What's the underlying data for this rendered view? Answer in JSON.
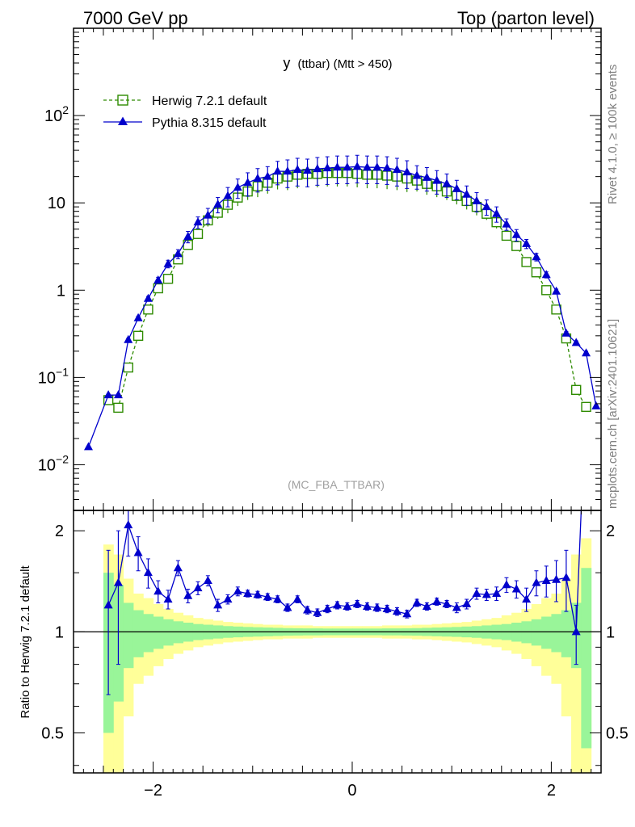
{
  "header": {
    "left": "7000 GeV pp",
    "right": "Top (parton level)"
  },
  "side_labels": {
    "rivet": "Rivet 4.1.0, ≥ 100k events",
    "mcplots": "mcplots.cern.ch [arXiv:2401.10621]"
  },
  "colors": {
    "herwig": "#2e8b00",
    "pythia": "#0000cc",
    "band_yellow": "#ffff99",
    "band_green": "#99f599"
  },
  "chart_data": [
    {
      "type": "line",
      "name": "main",
      "title": "y (ttbar) (Mtt > 450)",
      "title_main": "y",
      "title_sub": "(ttbar) (Mtt > 450)",
      "watermark": "(MC_FBA_TTBAR)",
      "xlabel": "",
      "ylabel": "",
      "yscale": "log",
      "xlim": [
        -2.8,
        2.5
      ],
      "ylim": [
        0.003,
        1000
      ],
      "y_tick_labels": [
        "10^-2",
        "10^-1",
        "1",
        "10",
        "10^2"
      ],
      "legend": [
        {
          "label": "Herwig 7.2.1 default",
          "marker": "open-square",
          "style": "dashed"
        },
        {
          "label": "Pythia 8.315 default",
          "marker": "filled-triangle",
          "style": "solid"
        }
      ],
      "series": [
        {
          "name": "Herwig 7.2.1 default",
          "x": [
            -2.45,
            -2.35,
            -2.25,
            -2.15,
            -2.05,
            -1.95,
            -1.85,
            -1.75,
            -1.65,
            -1.55,
            -1.45,
            -1.35,
            -1.25,
            -1.15,
            -1.05,
            -0.95,
            -0.85,
            -0.75,
            -0.65,
            -0.55,
            -0.45,
            -0.35,
            -0.25,
            -0.15,
            -0.05,
            0.05,
            0.15,
            0.25,
            0.35,
            0.45,
            0.55,
            0.65,
            0.75,
            0.85,
            0.95,
            1.05,
            1.15,
            1.25,
            1.35,
            1.45,
            1.55,
            1.65,
            1.75,
            1.85,
            1.95,
            2.05,
            2.15,
            2.25,
            2.35
          ],
          "y": [
            0.055,
            0.045,
            0.13,
            0.3,
            0.6,
            1.05,
            1.35,
            2.25,
            3.3,
            4.4,
            6.3,
            7.7,
            9.5,
            11.5,
            13.5,
            15.5,
            17,
            19,
            20,
            21,
            21.5,
            21.5,
            22,
            22,
            22,
            21.5,
            21,
            21,
            20.5,
            20,
            19,
            18,
            16.5,
            15.5,
            13.5,
            12,
            10.5,
            9,
            7.5,
            6,
            4.2,
            3.2,
            2.1,
            1.6,
            1,
            0.6,
            0.28,
            0.072,
            0.046
          ],
          "err": [
            0.02,
            0.02,
            0.02,
            0.04,
            0.05,
            0.05,
            0.06,
            0.08,
            0.1,
            0.12,
            0.15,
            0.15,
            0.2,
            0.2,
            0.2,
            0.25,
            0.25,
            0.25,
            0.3,
            0.3,
            0.3,
            0.3,
            0.3,
            0.3,
            0.3,
            0.3,
            0.3,
            0.3,
            0.3,
            0.3,
            0.3,
            0.25,
            0.25,
            0.25,
            0.2,
            0.2,
            0.2,
            0.2,
            0.15,
            0.15,
            0.12,
            0.1,
            0.08,
            0.06,
            0.05,
            0.05,
            0.04,
            0.02,
            0.02
          ]
        },
        {
          "name": "Pythia 8.315 default",
          "x": [
            -2.65,
            -2.45,
            -2.35,
            -2.25,
            -2.15,
            -2.05,
            -1.95,
            -1.85,
            -1.75,
            -1.65,
            -1.55,
            -1.45,
            -1.35,
            -1.25,
            -1.15,
            -1.05,
            -0.95,
            -0.85,
            -0.75,
            -0.65,
            -0.55,
            -0.45,
            -0.35,
            -0.25,
            -0.15,
            -0.05,
            0.05,
            0.15,
            0.25,
            0.35,
            0.45,
            0.55,
            0.65,
            0.75,
            0.85,
            0.95,
            1.05,
            1.15,
            1.25,
            1.35,
            1.45,
            1.55,
            1.65,
            1.75,
            1.85,
            1.95,
            2.05,
            2.15,
            2.25,
            2.35,
            2.45
          ],
          "y": [
            0.016,
            0.063,
            0.063,
            0.27,
            0.48,
            0.8,
            1.3,
            2,
            2.6,
            4.1,
            6,
            7.2,
            9.6,
            12,
            15,
            17,
            19,
            20,
            23,
            23,
            24,
            23.5,
            24.5,
            25,
            25.5,
            25.5,
            26,
            25.5,
            25.5,
            25,
            24,
            22.5,
            20.5,
            19.5,
            18,
            16.5,
            14.5,
            12.5,
            10.5,
            9,
            7.5,
            5.7,
            4.3,
            3.4,
            2.4,
            1.5,
            0.97,
            0.32,
            0.25,
            0.19,
            0.047
          ],
          "err": [
            0.015,
            0.025,
            0.03,
            0.04,
            0.05,
            0.06,
            0.08,
            0.1,
            0.12,
            0.15,
            0.15,
            0.2,
            0.2,
            0.25,
            0.25,
            0.3,
            0.3,
            0.3,
            0.3,
            0.35,
            0.35,
            0.35,
            0.35,
            0.35,
            0.35,
            0.35,
            0.35,
            0.35,
            0.35,
            0.35,
            0.35,
            0.35,
            0.3,
            0.3,
            0.3,
            0.3,
            0.25,
            0.25,
            0.25,
            0.2,
            0.2,
            0.15,
            0.15,
            0.12,
            0.1,
            0.08,
            0.06,
            0.05,
            0.05,
            0.05,
            0.025
          ]
        }
      ]
    },
    {
      "type": "line",
      "name": "ratio",
      "ylabel": "Ratio to Herwig 7.2.1 default",
      "xlabel": "",
      "yscale": "log",
      "xlim": [
        -2.8,
        2.5
      ],
      "ylim": [
        0.38,
        2.3
      ],
      "x_tick_labels": [
        "−2",
        "0",
        "2"
      ],
      "y_tick_labels": [
        "0.5",
        "1",
        "2"
      ],
      "series": [
        {
          "name": "Pythia 8.315 default",
          "x": [
            -2.45,
            -2.35,
            -2.25,
            -2.15,
            -2.05,
            -1.95,
            -1.85,
            -1.75,
            -1.65,
            -1.55,
            -1.45,
            -1.35,
            -1.25,
            -1.15,
            -1.05,
            -0.95,
            -0.85,
            -0.75,
            -0.65,
            -0.55,
            -0.45,
            -0.35,
            -0.25,
            -0.15,
            -0.05,
            0.05,
            0.15,
            0.25,
            0.35,
            0.45,
            0.55,
            0.65,
            0.75,
            0.85,
            0.95,
            1.05,
            1.15,
            1.25,
            1.35,
            1.45,
            1.55,
            1.65,
            1.75,
            1.85,
            1.95,
            2.05,
            2.15,
            2.25
          ],
          "y": [
            1.2,
            1.4,
            2.08,
            1.72,
            1.5,
            1.32,
            1.25,
            1.55,
            1.28,
            1.35,
            1.42,
            1.2,
            1.25,
            1.32,
            1.3,
            1.29,
            1.27,
            1.25,
            1.18,
            1.25,
            1.16,
            1.14,
            1.17,
            1.2,
            1.19,
            1.21,
            1.19,
            1.18,
            1.17,
            1.15,
            1.13,
            1.22,
            1.19,
            1.23,
            1.21,
            1.18,
            1.21,
            1.3,
            1.29,
            1.3,
            1.38,
            1.34,
            1.25,
            1.4,
            1.42,
            1.43,
            1.45,
            1.0
          ],
          "err": [
            0.55,
            0.6,
            0.4,
            0.2,
            0.15,
            0.1,
            0.08,
            0.08,
            0.06,
            0.06,
            0.05,
            0.05,
            0.04,
            0.04,
            0.03,
            0.03,
            0.03,
            0.03,
            0.03,
            0.03,
            0.03,
            0.03,
            0.03,
            0.03,
            0.03,
            0.03,
            0.03,
            0.03,
            0.03,
            0.03,
            0.03,
            0.03,
            0.03,
            0.03,
            0.03,
            0.04,
            0.04,
            0.05,
            0.05,
            0.06,
            0.07,
            0.08,
            0.1,
            0.12,
            0.15,
            0.2,
            0.3,
            0.2
          ],
          "tail_x": [
            2.25,
            2.3
          ],
          "tail_y": [
            1.0,
            3.0
          ]
        }
      ],
      "band_x": [
        -2.45,
        -2.35,
        -2.25,
        -2.15,
        -2.05,
        -1.95,
        -1.85,
        -1.75,
        -1.65,
        -1.55,
        -1.45,
        -1.35,
        -1.25,
        -1.15,
        -1.05,
        -0.95,
        -0.85,
        -0.75,
        -0.65,
        -0.55,
        -0.45,
        -0.35,
        -0.25,
        -0.15,
        -0.05,
        0.05,
        0.15,
        0.25,
        0.35,
        0.45,
        0.55,
        0.65,
        0.75,
        0.85,
        0.95,
        1.05,
        1.15,
        1.25,
        1.35,
        1.45,
        1.55,
        1.65,
        1.75,
        1.85,
        1.95,
        2.05,
        2.15,
        2.25,
        2.35
      ],
      "band_yellow": [
        0.82,
        0.7,
        0.44,
        0.3,
        0.26,
        0.21,
        0.17,
        0.14,
        0.12,
        0.1,
        0.09,
        0.08,
        0.07,
        0.065,
        0.06,
        0.055,
        0.05,
        0.05,
        0.045,
        0.045,
        0.045,
        0.04,
        0.04,
        0.04,
        0.04,
        0.04,
        0.04,
        0.04,
        0.045,
        0.045,
        0.045,
        0.05,
        0.05,
        0.055,
        0.06,
        0.065,
        0.07,
        0.08,
        0.09,
        0.1,
        0.12,
        0.14,
        0.17,
        0.21,
        0.26,
        0.3,
        0.44,
        0.7,
        0.9
      ],
      "band_green": [
        0.5,
        0.38,
        0.22,
        0.16,
        0.13,
        0.11,
        0.09,
        0.075,
        0.065,
        0.055,
        0.05,
        0.045,
        0.04,
        0.037,
        0.034,
        0.032,
        0.03,
        0.028,
        0.026,
        0.025,
        0.024,
        0.024,
        0.023,
        0.023,
        0.023,
        0.023,
        0.023,
        0.023,
        0.024,
        0.024,
        0.025,
        0.026,
        0.028,
        0.03,
        0.032,
        0.034,
        0.037,
        0.04,
        0.045,
        0.05,
        0.055,
        0.065,
        0.075,
        0.09,
        0.11,
        0.13,
        0.16,
        0.22,
        0.55
      ]
    }
  ]
}
